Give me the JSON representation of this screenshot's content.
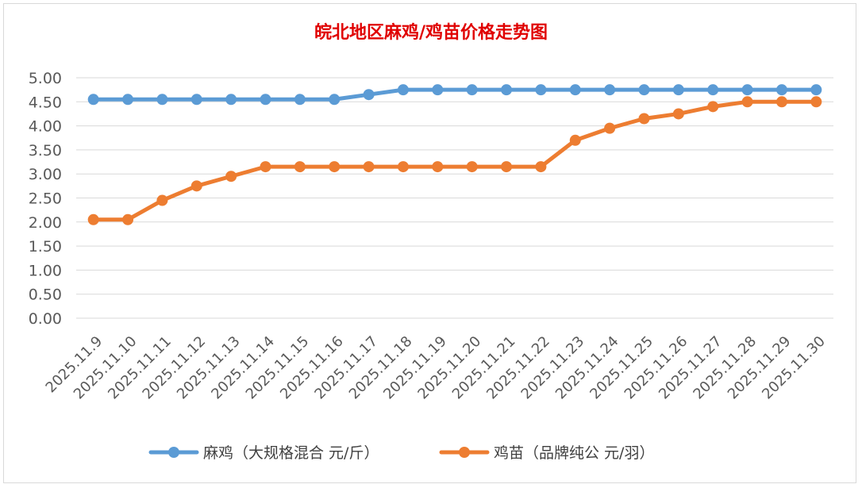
{
  "chart_data": {
    "type": "line",
    "title": "皖北地区麻鸡/鸡苗价格走势图",
    "xlabel": "",
    "ylabel": "",
    "ylim": [
      0,
      5
    ],
    "yticks": [
      "0.00",
      "0.50",
      "1.00",
      "1.50",
      "2.00",
      "2.50",
      "3.00",
      "3.50",
      "4.00",
      "4.50",
      "5.00"
    ],
    "grid": true,
    "legend_position": "bottom",
    "categories": [
      "2025.11.9",
      "2025.11.10",
      "2025.11.11",
      "2025.11.12",
      "2025.11.13",
      "2025.11.14",
      "2025.11.15",
      "2025.11.16",
      "2025.11.17",
      "2025.11.18",
      "2025.11.19",
      "2025.11.20",
      "2025.11.21",
      "2025.11.22",
      "2025.11.23",
      "2025.11.24",
      "2025.11.25",
      "2025.11.26",
      "2025.11.27",
      "2025.11.28",
      "2025.11.29",
      "2025.11.30"
    ],
    "series": [
      {
        "name": "麻鸡（大规格混合 元/斤）",
        "color": "#5b9bd5",
        "values": [
          4.55,
          4.55,
          4.55,
          4.55,
          4.55,
          4.55,
          4.55,
          4.55,
          4.65,
          4.75,
          4.75,
          4.75,
          4.75,
          4.75,
          4.75,
          4.75,
          4.75,
          4.75,
          4.75,
          4.75,
          4.75,
          4.75
        ]
      },
      {
        "name": "鸡苗（品牌纯公 元/羽）",
        "color": "#ed7d31",
        "values": [
          2.05,
          2.05,
          2.45,
          2.75,
          2.95,
          3.15,
          3.15,
          3.15,
          3.15,
          3.15,
          3.15,
          3.15,
          3.15,
          3.15,
          3.7,
          3.95,
          4.15,
          4.25,
          4.4,
          4.5,
          4.5,
          4.5
        ]
      }
    ]
  }
}
